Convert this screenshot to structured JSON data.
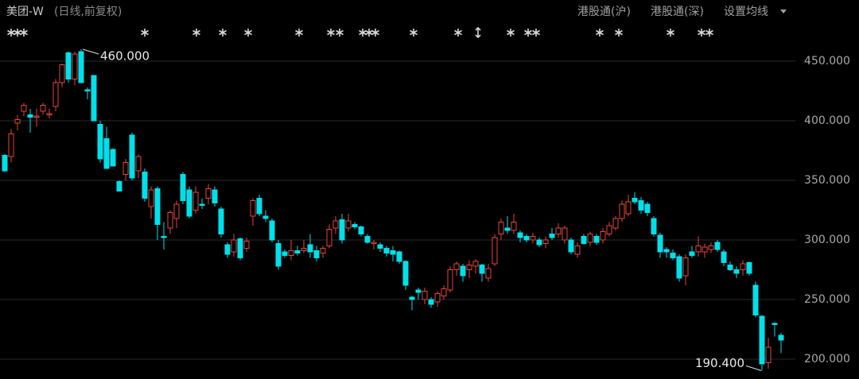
{
  "header": {
    "title": "美团-W",
    "subtitle": "(日线,前复权)",
    "links": [
      "港股通(沪)",
      "港股通(深)"
    ],
    "menu": "设置均线"
  },
  "chart_data": {
    "type": "candlestick",
    "up_color": "#e8453c",
    "down_color": "#00e0ea",
    "ylim": [
      185,
      465
    ],
    "yticks": [
      {
        "value": 200,
        "label": "200.000"
      },
      {
        "value": 250,
        "label": "250.000"
      },
      {
        "value": 300,
        "label": "300.000"
      },
      {
        "value": 350,
        "label": "350.000"
      },
      {
        "value": 400,
        "label": "400.000"
      },
      {
        "value": 450,
        "label": "450.000"
      }
    ],
    "grid": true,
    "annotations": [
      {
        "label": "460.000",
        "value": 460
      },
      {
        "label": "190.400",
        "value": 190.4
      }
    ],
    "open": [
      371,
      370,
      398,
      408,
      405,
      403,
      408,
      405,
      412,
      432,
      457,
      435,
      458,
      426,
      438,
      397,
      385,
      376,
      349,
      355,
      388,
      358,
      357,
      328,
      343,
      303,
      310,
      318,
      355,
      342,
      325,
      330,
      335,
      342,
      326,
      296,
      290,
      301,
      293,
      320,
      335,
      320,
      316,
      297,
      290,
      287,
      291,
      291,
      296,
      291,
      289,
      295,
      310,
      317,
      310,
      313,
      311,
      303,
      297,
      296,
      293,
      291,
      290,
      282,
      252,
      258,
      250,
      250,
      248,
      253,
      258,
      275,
      278,
      275,
      278,
      279,
      268,
      280,
      305,
      310,
      308,
      306,
      303,
      300,
      300,
      297,
      305,
      305,
      300,
      300,
      288,
      303,
      298,
      303,
      300,
      305,
      310,
      318,
      322,
      335,
      333,
      330,
      318,
      304,
      292,
      289,
      286,
      270,
      290,
      290,
      290,
      292,
      298,
      290,
      279,
      275,
      275,
      281,
      262,
      236,
      197,
      230,
      220
    ],
    "high": [
      372,
      393,
      405,
      415,
      410,
      410,
      415,
      410,
      435,
      448,
      458,
      458,
      460,
      428,
      438,
      400,
      395,
      377,
      350,
      368,
      390,
      372,
      360,
      345,
      345,
      315,
      325,
      333,
      357,
      345,
      345,
      335,
      347,
      345,
      328,
      298,
      305,
      302,
      302,
      335,
      338,
      325,
      318,
      300,
      292,
      300,
      295,
      300,
      305,
      295,
      295,
      313,
      320,
      322,
      322,
      315,
      312,
      305,
      300,
      298,
      295,
      295,
      291,
      283,
      253,
      260,
      260,
      252,
      257,
      262,
      278,
      282,
      280,
      283,
      284,
      280,
      280,
      305,
      318,
      320,
      322,
      308,
      305,
      306,
      302,
      303,
      310,
      314,
      312,
      302,
      298,
      305,
      307,
      305,
      310,
      315,
      320,
      333,
      338,
      340,
      336,
      332,
      320,
      306,
      294,
      292,
      288,
      288,
      295,
      303,
      297,
      298,
      300,
      292,
      282,
      278,
      283,
      282,
      265,
      237,
      218,
      231,
      222
    ],
    "low": [
      357,
      365,
      392,
      404,
      390,
      395,
      405,
      402,
      408,
      428,
      432,
      430,
      432,
      418,
      400,
      365,
      360,
      362,
      341,
      350,
      350,
      352,
      332,
      318,
      300,
      292,
      305,
      310,
      330,
      318,
      322,
      326,
      330,
      328,
      302,
      285,
      286,
      283,
      290,
      312,
      320,
      315,
      298,
      275,
      285,
      283,
      287,
      289,
      285,
      282,
      285,
      293,
      305,
      297,
      307,
      309,
      303,
      297,
      292,
      290,
      286,
      282,
      280,
      258,
      241,
      250,
      246,
      243,
      244,
      250,
      256,
      270,
      265,
      268,
      272,
      265,
      265,
      278,
      300,
      305,
      305,
      298,
      298,
      297,
      294,
      293,
      300,
      302,
      297,
      288,
      285,
      296,
      295,
      296,
      297,
      303,
      308,
      315,
      320,
      330,
      322,
      320,
      303,
      285,
      285,
      283,
      265,
      262,
      285,
      286,
      285,
      289,
      290,
      278,
      274,
      268,
      270,
      270,
      235,
      190.4,
      192,
      219,
      205
    ],
    "close": [
      358,
      389,
      401,
      413,
      403,
      404,
      413,
      406,
      432,
      447,
      435,
      456,
      432,
      425,
      400,
      368,
      360,
      362,
      341,
      365,
      352,
      370,
      335,
      342,
      313,
      302,
      323,
      330,
      333,
      320,
      340,
      329,
      343,
      331,
      305,
      288,
      300,
      285,
      299,
      333,
      322,
      318,
      300,
      278,
      287,
      291,
      289,
      293,
      290,
      285,
      293,
      309,
      316,
      300,
      316,
      311,
      305,
      298,
      298,
      293,
      289,
      288,
      282,
      262,
      250,
      256,
      257,
      246,
      255,
      259,
      275,
      280,
      270,
      279,
      282,
      272,
      276,
      302,
      315,
      308,
      315,
      302,
      300,
      303,
      296,
      300,
      302,
      310,
      310,
      290,
      295,
      297,
      305,
      298,
      307,
      312,
      318,
      330,
      332,
      332,
      325,
      323,
      305,
      290,
      290,
      285,
      268,
      285,
      287,
      295,
      294,
      295,
      292,
      281,
      275,
      272,
      280,
      272,
      237,
      196,
      210,
      229,
      216
    ]
  }
}
